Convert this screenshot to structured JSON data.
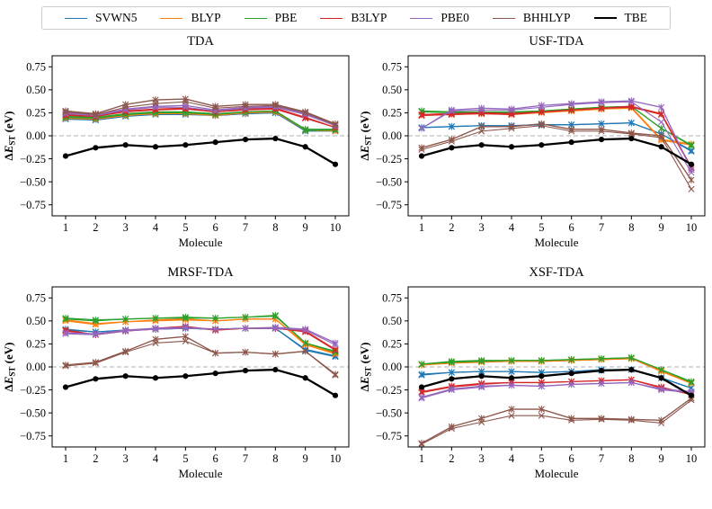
{
  "figure": {
    "ylabel": {
      "delta": "Δ",
      "symbol": "E",
      "subscript": "ST",
      "unit": " (eV)",
      "text": "ΔE_ST (eV)"
    },
    "xlabel": "Molecule"
  },
  "legend": {
    "items": [
      {
        "label": "SVWN5",
        "color": "#1f77b4",
        "lw": 1.6
      },
      {
        "label": "BLYP",
        "color": "#ff7f0e",
        "lw": 1.6
      },
      {
        "label": "PBE",
        "color": "#2ca02c",
        "lw": 1.6
      },
      {
        "label": "B3LYP",
        "color": "#d62728",
        "lw": 1.6
      },
      {
        "label": "PBE0",
        "color": "#9467bd",
        "lw": 1.6
      },
      {
        "label": "BHHLYP",
        "color": "#8c564b",
        "lw": 1.6
      },
      {
        "label": "TBE",
        "color": "#000000",
        "lw": 2.6
      }
    ]
  },
  "chart_data": [
    {
      "type": "line",
      "title": "TDA",
      "xlabel": "Molecule",
      "ylabel": "ΔE_ST (eV)",
      "x": [
        1,
        2,
        3,
        4,
        5,
        6,
        7,
        8,
        9,
        10
      ],
      "xlim": [
        0.55,
        10.45
      ],
      "ylim": [
        -0.87,
        0.87
      ],
      "yticks": [
        0.75,
        0.5,
        0.25,
        0.0,
        -0.25,
        -0.5,
        -0.75
      ],
      "zero_line": true,
      "series": [
        {
          "name": "SVWN5",
          "color": "#1f77b4",
          "marker": "star",
          "values": [
            0.19,
            0.18,
            0.22,
            0.24,
            0.24,
            0.22,
            0.24,
            0.25,
            0.06,
            0.06
          ],
          "values2": [
            0.18,
            0.17,
            0.21,
            0.23,
            0.23,
            0.22,
            0.24,
            0.25,
            0.05,
            0.05
          ]
        },
        {
          "name": "BLYP",
          "color": "#ff7f0e",
          "marker": "star",
          "values": [
            0.2,
            0.19,
            0.23,
            0.24,
            0.25,
            0.23,
            0.25,
            0.26,
            0.06,
            0.06
          ],
          "values2": [
            0.19,
            0.18,
            0.22,
            0.24,
            0.24,
            0.22,
            0.25,
            0.26,
            0.06,
            0.05
          ]
        },
        {
          "name": "PBE",
          "color": "#2ca02c",
          "marker": "star",
          "values": [
            0.21,
            0.2,
            0.24,
            0.26,
            0.26,
            0.24,
            0.26,
            0.27,
            0.07,
            0.07
          ],
          "values2": [
            0.2,
            0.19,
            0.23,
            0.25,
            0.25,
            0.23,
            0.26,
            0.27,
            0.06,
            0.06
          ]
        },
        {
          "name": "B3LYP",
          "color": "#d62728",
          "marker": "star",
          "values": [
            0.23,
            0.21,
            0.27,
            0.29,
            0.3,
            0.26,
            0.29,
            0.3,
            0.2,
            0.09
          ],
          "values2": [
            0.22,
            0.21,
            0.26,
            0.28,
            0.29,
            0.26,
            0.28,
            0.29,
            0.19,
            0.09
          ]
        },
        {
          "name": "PBE0",
          "color": "#9467bd",
          "marker": "star",
          "values": [
            0.25,
            0.23,
            0.29,
            0.32,
            0.33,
            0.28,
            0.31,
            0.32,
            0.24,
            0.11
          ],
          "values2": [
            0.24,
            0.22,
            0.28,
            0.31,
            0.31,
            0.27,
            0.3,
            0.31,
            0.23,
            0.11
          ]
        },
        {
          "name": "BHHLYP",
          "color": "#8c564b",
          "marker": "star",
          "values": [
            0.27,
            0.24,
            0.34,
            0.39,
            0.4,
            0.32,
            0.34,
            0.34,
            0.26,
            0.13
          ],
          "values2": [
            0.26,
            0.23,
            0.31,
            0.35,
            0.37,
            0.3,
            0.32,
            0.33,
            0.25,
            0.12
          ]
        },
        {
          "name": "TBE",
          "color": "#000000",
          "marker": "circle",
          "lw": 2.3,
          "values": [
            -0.22,
            -0.13,
            -0.1,
            -0.12,
            -0.1,
            -0.07,
            -0.04,
            -0.03,
            -0.12,
            -0.31
          ]
        }
      ]
    },
    {
      "type": "line",
      "title": "USF-TDA",
      "xlabel": "Molecule",
      "ylabel": "ΔE_ST (eV)",
      "x": [
        1,
        2,
        3,
        4,
        5,
        6,
        7,
        8,
        9,
        10
      ],
      "xlim": [
        0.55,
        10.45
      ],
      "ylim": [
        -0.87,
        0.87
      ],
      "yticks": [
        0.75,
        0.5,
        0.25,
        0.0,
        -0.25,
        -0.5,
        -0.75
      ],
      "zero_line": true,
      "series": [
        {
          "name": "SVWN5",
          "color": "#1f77b4",
          "marker": "star",
          "values": [
            0.09,
            0.1,
            0.11,
            0.11,
            0.12,
            0.12,
            0.13,
            0.14,
            0.02,
            -0.16
          ],
          "values2": [
            0.09,
            0.1,
            0.11,
            0.11,
            0.12,
            0.12,
            0.13,
            0.14,
            0.02,
            -0.17
          ]
        },
        {
          "name": "BLYP",
          "color": "#ff7f0e",
          "marker": "star",
          "values": [
            0.23,
            0.24,
            0.24,
            0.24,
            0.26,
            0.27,
            0.29,
            0.31,
            -0.04,
            -0.09
          ],
          "values2": [
            0.22,
            0.23,
            0.24,
            0.23,
            0.25,
            0.27,
            0.29,
            0.3,
            -0.05,
            -0.1
          ]
        },
        {
          "name": "PBE",
          "color": "#2ca02c",
          "marker": "star",
          "values": [
            0.27,
            0.26,
            0.26,
            0.26,
            0.27,
            0.29,
            0.31,
            0.32,
            0.08,
            -0.1
          ],
          "values2": [
            0.26,
            0.25,
            0.25,
            0.25,
            0.27,
            0.29,
            0.31,
            0.32,
            0.08,
            -0.11
          ]
        },
        {
          "name": "B3LYP",
          "color": "#d62728",
          "marker": "star",
          "values": [
            0.23,
            0.24,
            0.25,
            0.24,
            0.26,
            0.28,
            0.3,
            0.32,
            0.24,
            -0.34
          ],
          "values2": [
            0.22,
            0.23,
            0.24,
            0.23,
            0.26,
            0.28,
            0.3,
            0.31,
            0.23,
            -0.35
          ]
        },
        {
          "name": "PBE0",
          "color": "#9467bd",
          "marker": "star",
          "values": [
            0.08,
            0.28,
            0.3,
            0.29,
            0.33,
            0.35,
            0.37,
            0.38,
            0.31,
            -0.37
          ],
          "values2": [
            0.08,
            0.27,
            0.28,
            0.28,
            0.31,
            0.34,
            0.36,
            0.37,
            0.15,
            -0.4
          ]
        },
        {
          "name": "BHHLYP",
          "color": "#8c564b",
          "marker": "star",
          "values": [
            -0.13,
            -0.04,
            0.1,
            0.1,
            0.13,
            0.07,
            0.07,
            0.03,
            0.0,
            -0.48
          ],
          "values2": [
            -0.15,
            -0.06,
            0.05,
            0.08,
            0.11,
            0.05,
            0.05,
            0.02,
            -0.02,
            -0.58
          ]
        },
        {
          "name": "TBE",
          "color": "#000000",
          "marker": "circle",
          "lw": 2.3,
          "values": [
            -0.22,
            -0.13,
            -0.1,
            -0.12,
            -0.1,
            -0.07,
            -0.04,
            -0.03,
            -0.12,
            -0.31
          ]
        }
      ]
    },
    {
      "type": "line",
      "title": "MRSF-TDA",
      "xlabel": "Molecule",
      "ylabel": "ΔE_ST (eV)",
      "x": [
        1,
        2,
        3,
        4,
        5,
        6,
        7,
        8,
        9,
        10
      ],
      "xlim": [
        0.55,
        10.45
      ],
      "ylim": [
        -0.87,
        0.87
      ],
      "yticks": [
        0.75,
        0.5,
        0.25,
        0.0,
        -0.25,
        -0.5,
        -0.75
      ],
      "zero_line": true,
      "series": [
        {
          "name": "SVWN5",
          "color": "#1f77b4",
          "marker": "star",
          "values": [
            0.41,
            0.38,
            0.4,
            0.41,
            0.42,
            0.41,
            0.42,
            0.42,
            0.19,
            0.12
          ],
          "values2": [
            0.4,
            0.38,
            0.4,
            0.41,
            0.42,
            0.41,
            0.42,
            0.42,
            0.18,
            0.11
          ]
        },
        {
          "name": "BLYP",
          "color": "#ff7f0e",
          "marker": "star",
          "values": [
            0.51,
            0.47,
            0.49,
            0.51,
            0.52,
            0.5,
            0.52,
            0.52,
            0.25,
            0.15
          ],
          "values2": [
            0.5,
            0.46,
            0.49,
            0.5,
            0.51,
            0.5,
            0.52,
            0.52,
            0.24,
            0.14
          ]
        },
        {
          "name": "PBE",
          "color": "#2ca02c",
          "marker": "star",
          "values": [
            0.53,
            0.51,
            0.52,
            0.53,
            0.54,
            0.53,
            0.54,
            0.56,
            0.26,
            0.17
          ],
          "values2": [
            0.52,
            0.5,
            0.52,
            0.53,
            0.53,
            0.53,
            0.54,
            0.55,
            0.26,
            0.16
          ]
        },
        {
          "name": "B3LYP",
          "color": "#d62728",
          "marker": "star",
          "values": [
            0.4,
            0.35,
            0.39,
            0.42,
            0.44,
            0.4,
            0.42,
            0.42,
            0.39,
            0.19
          ],
          "values2": [
            0.39,
            0.35,
            0.39,
            0.41,
            0.43,
            0.4,
            0.42,
            0.42,
            0.38,
            0.18
          ]
        },
        {
          "name": "PBE0",
          "color": "#9467bd",
          "marker": "star",
          "values": [
            0.37,
            0.36,
            0.4,
            0.42,
            0.43,
            0.41,
            0.42,
            0.43,
            0.41,
            0.26
          ],
          "values2": [
            0.36,
            0.35,
            0.39,
            0.41,
            0.42,
            0.41,
            0.42,
            0.42,
            0.4,
            0.24
          ]
        },
        {
          "name": "BHHLYP",
          "color": "#8c564b",
          "marker": "star",
          "values": [
            0.02,
            0.05,
            0.17,
            0.3,
            0.33,
            0.15,
            0.16,
            0.14,
            0.17,
            -0.08
          ],
          "values2": [
            0.01,
            0.04,
            0.16,
            0.26,
            0.28,
            0.15,
            0.16,
            0.14,
            0.17,
            -0.09
          ]
        },
        {
          "name": "TBE",
          "color": "#000000",
          "marker": "circle",
          "lw": 2.3,
          "values": [
            -0.22,
            -0.13,
            -0.1,
            -0.12,
            -0.1,
            -0.07,
            -0.04,
            -0.03,
            -0.12,
            -0.31
          ]
        }
      ]
    },
    {
      "type": "line",
      "title": "XSF-TDA",
      "xlabel": "Molecule",
      "ylabel": "ΔE_ST (eV)",
      "x": [
        1,
        2,
        3,
        4,
        5,
        6,
        7,
        8,
        9,
        10
      ],
      "xlim": [
        0.55,
        10.45
      ],
      "ylim": [
        -0.87,
        0.87
      ],
      "yticks": [
        0.75,
        0.5,
        0.25,
        0.0,
        -0.25,
        -0.5,
        -0.75
      ],
      "zero_line": true,
      "series": [
        {
          "name": "SVWN5",
          "color": "#1f77b4",
          "marker": "star",
          "values": [
            -0.08,
            -0.06,
            -0.05,
            -0.05,
            -0.06,
            -0.05,
            -0.03,
            -0.03,
            -0.12,
            -0.23
          ],
          "values2": [
            -0.09,
            -0.06,
            -0.05,
            -0.05,
            -0.06,
            -0.05,
            -0.04,
            -0.03,
            -0.12,
            -0.23
          ]
        },
        {
          "name": "BLYP",
          "color": "#ff7f0e",
          "marker": "star",
          "values": [
            0.02,
            0.05,
            0.06,
            0.06,
            0.06,
            0.07,
            0.08,
            0.09,
            -0.04,
            -0.17
          ],
          "values2": [
            0.02,
            0.04,
            0.05,
            0.06,
            0.06,
            0.07,
            0.08,
            0.09,
            -0.05,
            -0.18
          ]
        },
        {
          "name": "PBE",
          "color": "#2ca02c",
          "marker": "star",
          "values": [
            0.03,
            0.06,
            0.07,
            0.07,
            0.07,
            0.08,
            0.09,
            0.1,
            -0.03,
            -0.16
          ],
          "values2": [
            0.03,
            0.05,
            0.06,
            0.07,
            0.07,
            0.08,
            0.09,
            0.1,
            -0.03,
            -0.17
          ]
        },
        {
          "name": "B3LYP",
          "color": "#d62728",
          "marker": "star",
          "values": [
            -0.27,
            -0.21,
            -0.18,
            -0.17,
            -0.17,
            -0.16,
            -0.15,
            -0.14,
            -0.22,
            -0.3
          ],
          "values2": [
            -0.28,
            -0.22,
            -0.19,
            -0.17,
            -0.17,
            -0.16,
            -0.15,
            -0.14,
            -0.23,
            -0.3
          ]
        },
        {
          "name": "PBE0",
          "color": "#9467bd",
          "marker": "star",
          "values": [
            -0.33,
            -0.24,
            -0.21,
            -0.2,
            -0.21,
            -0.19,
            -0.18,
            -0.17,
            -0.24,
            -0.27
          ],
          "values2": [
            -0.34,
            -0.25,
            -0.22,
            -0.2,
            -0.21,
            -0.19,
            -0.18,
            -0.17,
            -0.25,
            -0.28
          ]
        },
        {
          "name": "BHHLYP",
          "color": "#8c564b",
          "marker": "star",
          "values": [
            -0.83,
            -0.65,
            -0.56,
            -0.46,
            -0.46,
            -0.56,
            -0.56,
            -0.57,
            -0.58,
            -0.34
          ],
          "values2": [
            -0.84,
            -0.67,
            -0.6,
            -0.53,
            -0.53,
            -0.58,
            -0.57,
            -0.58,
            -0.61,
            -0.36
          ]
        },
        {
          "name": "TBE",
          "color": "#000000",
          "marker": "circle",
          "lw": 2.3,
          "values": [
            -0.22,
            -0.13,
            -0.1,
            -0.12,
            -0.1,
            -0.07,
            -0.04,
            -0.03,
            -0.12,
            -0.31
          ]
        }
      ]
    }
  ]
}
